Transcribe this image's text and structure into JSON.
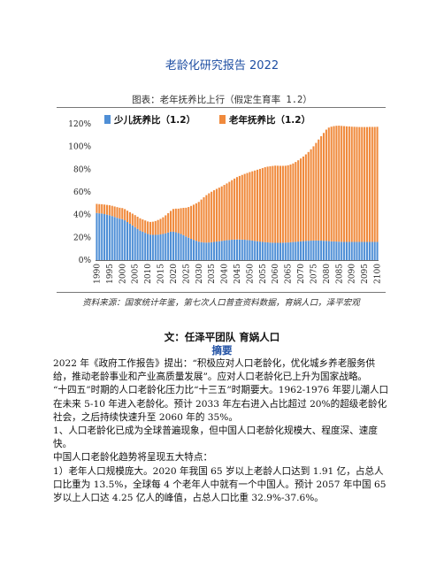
{
  "document": {
    "title": "老龄化研究报告 2022"
  },
  "figure": {
    "caption": "图表：老年抚养比上行（假定生育率 1.2）",
    "source": "资料来源：国家统计年鉴，第七次人口普查资料数据，育娲人口，泽平宏观"
  },
  "chart_data": {
    "type": "bar",
    "stacked": true,
    "title": "",
    "xlabel": "",
    "ylabel": "",
    "ylim": [
      0,
      1.2
    ],
    "yticks": [
      "0%",
      "20%",
      "40%",
      "60%",
      "80%",
      "100%",
      "120%"
    ],
    "x_tick_labels": [
      "1990",
      "1995",
      "2000",
      "2005",
      "2010",
      "2015",
      "2020",
      "2025",
      "2030",
      "2035",
      "2040",
      "2045",
      "2050",
      "2055",
      "2060",
      "2065",
      "2070",
      "2075",
      "2080",
      "2085",
      "2090",
      "2095",
      "2100"
    ],
    "grid": false,
    "legend_position": "top-left",
    "colors": {
      "youth": "#4f8fd6",
      "elderly": "#f08a3c"
    },
    "x": [
      1990,
      1991,
      1992,
      1993,
      1994,
      1995,
      1996,
      1997,
      1998,
      1999,
      2000,
      2001,
      2002,
      2003,
      2004,
      2005,
      2006,
      2007,
      2008,
      2009,
      2010,
      2011,
      2012,
      2013,
      2014,
      2015,
      2016,
      2017,
      2018,
      2019,
      2020,
      2021,
      2022,
      2023,
      2024,
      2025,
      2026,
      2027,
      2028,
      2029,
      2030,
      2031,
      2032,
      2033,
      2034,
      2035,
      2036,
      2037,
      2038,
      2039,
      2040,
      2041,
      2042,
      2043,
      2044,
      2045,
      2046,
      2047,
      2048,
      2049,
      2050,
      2051,
      2052,
      2053,
      2054,
      2055,
      2056,
      2057,
      2058,
      2059,
      2060,
      2061,
      2062,
      2063,
      2064,
      2065,
      2066,
      2067,
      2068,
      2069,
      2070,
      2071,
      2072,
      2073,
      2074,
      2075,
      2076,
      2077,
      2078,
      2079,
      2080,
      2081,
      2082,
      2083,
      2084,
      2085,
      2086,
      2087,
      2088,
      2089,
      2090,
      2091,
      2092,
      2093,
      2094,
      2095,
      2096,
      2097,
      2098,
      2099,
      2100
    ],
    "series": [
      {
        "name": "少儿抚养比（1.2）",
        "values": [
          0.415,
          0.412,
          0.41,
          0.405,
          0.4,
          0.395,
          0.388,
          0.38,
          0.372,
          0.365,
          0.36,
          0.35,
          0.335,
          0.32,
          0.305,
          0.29,
          0.275,
          0.26,
          0.25,
          0.24,
          0.23,
          0.224,
          0.222,
          0.222,
          0.224,
          0.226,
          0.23,
          0.236,
          0.243,
          0.25,
          0.25,
          0.245,
          0.238,
          0.23,
          0.22,
          0.208,
          0.197,
          0.187,
          0.178,
          0.17,
          0.162,
          0.158,
          0.155,
          0.154,
          0.155,
          0.157,
          0.16,
          0.163,
          0.166,
          0.169,
          0.172,
          0.175,
          0.177,
          0.179,
          0.18,
          0.181,
          0.181,
          0.18,
          0.179,
          0.177,
          0.175,
          0.172,
          0.169,
          0.166,
          0.163,
          0.16,
          0.158,
          0.156,
          0.154,
          0.153,
          0.152,
          0.152,
          0.152,
          0.153,
          0.154,
          0.155,
          0.157,
          0.159,
          0.161,
          0.163,
          0.165,
          0.167,
          0.169,
          0.17,
          0.171,
          0.172,
          0.172,
          0.172,
          0.171,
          0.17,
          0.169,
          0.167,
          0.165,
          0.164,
          0.163,
          0.162,
          0.161,
          0.16,
          0.16,
          0.16,
          0.16,
          0.16,
          0.16,
          0.16,
          0.16,
          0.16,
          0.16,
          0.16,
          0.16,
          0.16,
          0.16
        ]
      },
      {
        "name": "老年抚养比（1.2）",
        "values": [
          0.08,
          0.081,
          0.082,
          0.084,
          0.086,
          0.088,
          0.09,
          0.092,
          0.094,
          0.096,
          0.098,
          0.099,
          0.1,
          0.102,
          0.104,
          0.106,
          0.107,
          0.108,
          0.108,
          0.109,
          0.11,
          0.112,
          0.116,
          0.122,
          0.129,
          0.137,
          0.147,
          0.158,
          0.17,
          0.183,
          0.2,
          0.208,
          0.215,
          0.227,
          0.24,
          0.253,
          0.27,
          0.29,
          0.31,
          0.33,
          0.35,
          0.375,
          0.398,
          0.418,
          0.433,
          0.445,
          0.455,
          0.464,
          0.472,
          0.48,
          0.49,
          0.5,
          0.512,
          0.525,
          0.538,
          0.55,
          0.56,
          0.57,
          0.58,
          0.59,
          0.6,
          0.61,
          0.62,
          0.63,
          0.64,
          0.65,
          0.66,
          0.667,
          0.672,
          0.676,
          0.68,
          0.679,
          0.678,
          0.677,
          0.677,
          0.68,
          0.685,
          0.692,
          0.703,
          0.716,
          0.73,
          0.745,
          0.762,
          0.782,
          0.805,
          0.83,
          0.86,
          0.89,
          0.92,
          0.95,
          0.98,
          1.0,
          1.01,
          1.016,
          1.02,
          1.022,
          1.021,
          1.02,
          1.018,
          1.017,
          1.015,
          1.014,
          1.013,
          1.012,
          1.012,
          1.012,
          1.012,
          1.013,
          1.013,
          1.013,
          1.014
        ]
      }
    ]
  },
  "report": {
    "author": "文：任泽平团队  育娲人口",
    "abstract_heading": "摘要",
    "paragraphs": [
      "2022 年《政府工作报告》提出：“积极应对人口老龄化，优化城乡养老服务供给，推动老龄事业和产业高质量发展”。应对人口老龄化已上升为国家战略。",
      "“十四五”时期的人口老龄化压力比“十三五”时期要大。1962-1976 年婴儿潮人口在未来 5-10 年进入老龄化。预计 2033 年左右进入占比超过 20%的超级老龄化社会，之后持续快速升至 2060 年的 35%。",
      "1、人口老龄化已成为全球普遍现象，但中国人口老龄化规模大、程度深、速度快。",
      "中国人口老龄化趋势将呈现五大特点：",
      "1）老年人口规模庞大。2020 年我国 65 岁以上老龄人口达到 1.91 亿，占总人口比重为 13.5%，全球每 4 个老年人中就有一个中国人。预计 2057 年中国 65 岁以上人口达 4.25 亿人的峰值，占总人口比重 32.9%-37.6%。"
    ]
  }
}
